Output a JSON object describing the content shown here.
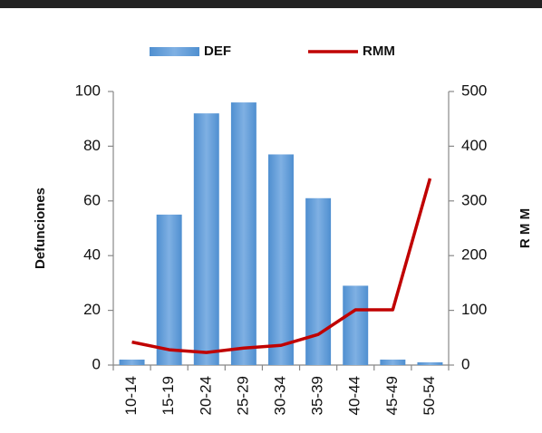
{
  "chart_data": {
    "type": "bar_line",
    "categories": [
      "10-14",
      "15-19",
      "20-24",
      "25-29",
      "30-34",
      "35-39",
      "40-44",
      "45-49",
      "50-54"
    ],
    "series": [
      {
        "name": "DEF",
        "type": "bar",
        "color": "#5b9bd5",
        "values": [
          2,
          55,
          92,
          96,
          77,
          61,
          29,
          2,
          1
        ]
      },
      {
        "name": "RMM",
        "type": "line",
        "axis": "y2",
        "color": "#c00000",
        "values": [
          42,
          28,
          23,
          31,
          36,
          56,
          101,
          101,
          341
        ]
      }
    ],
    "ylabel": "Defunciones",
    "y2label": "R M M",
    "ylim": [
      0,
      100
    ],
    "yticks": [
      0,
      20,
      40,
      60,
      80,
      100
    ],
    "y2lim": [
      0,
      500
    ],
    "y2ticks": [
      0,
      100,
      200,
      300,
      400,
      500
    ]
  }
}
